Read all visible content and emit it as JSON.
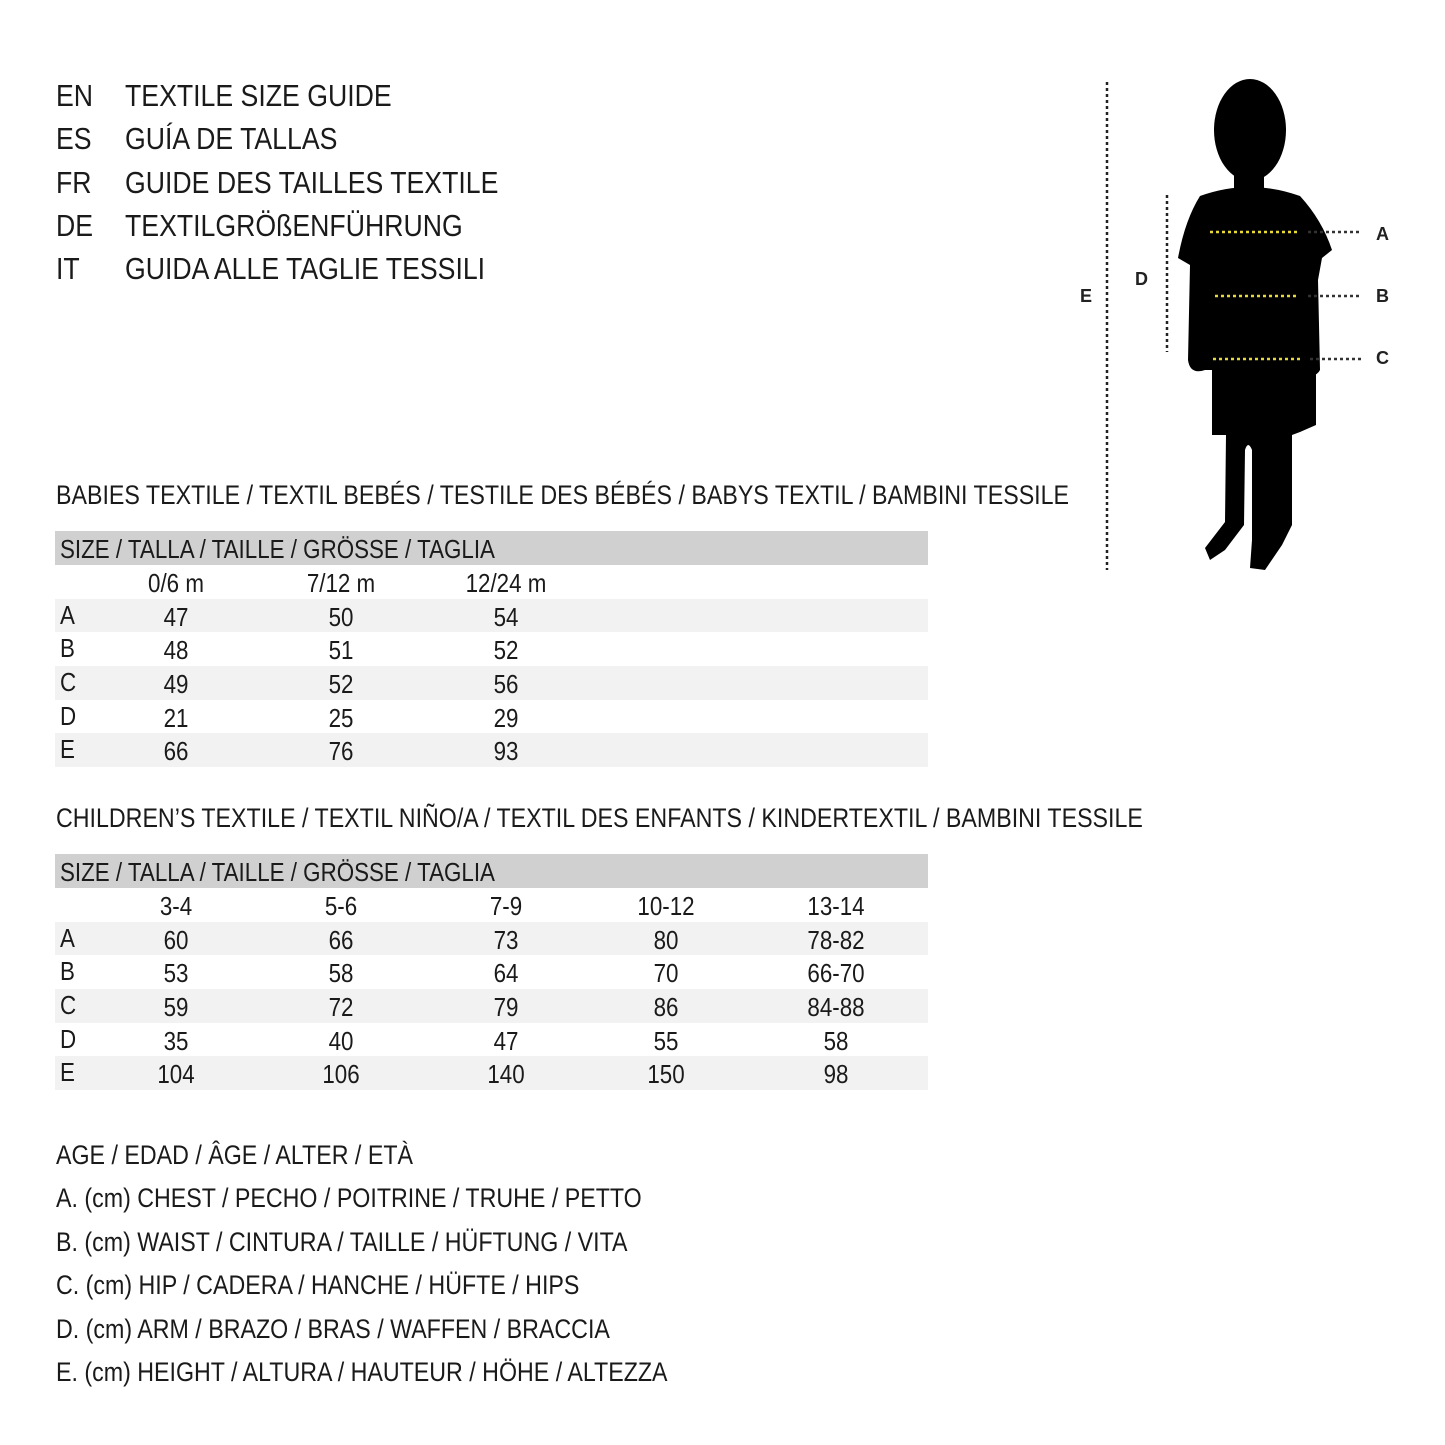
{
  "header": [
    {
      "code": "EN",
      "text": "TEXTILE SIZE GUIDE"
    },
    {
      "code": "ES",
      "text": "GUÍA DE TALLAS"
    },
    {
      "code": "FR",
      "text": "GUIDE DES TAILLES TEXTILE"
    },
    {
      "code": "DE",
      "text": "TEXTILGRÖßENFÜHRUNG"
    },
    {
      "code": "IT",
      "text": "GUIDA ALLE TAGLIE TESSILI"
    }
  ],
  "figure": {
    "labels": {
      "A": "A",
      "B": "B",
      "C": "C",
      "D": "D",
      "E": "E"
    },
    "marker_color": "#e8d93a"
  },
  "babies": {
    "title": "BABIES TEXTILE / TEXTIL BEBÉS / TESTILE DES BÉBÉS / BABYS TEXTIL / BAMBINI TESSILE",
    "size_header": "SIZE / TALLA / TAILLE / GRÖSSE / TAGLIA",
    "columns": [
      "0/6 m",
      "7/12 m",
      "12/24 m"
    ],
    "rows": [
      {
        "label": "A",
        "values": [
          "47",
          "50",
          "54"
        ]
      },
      {
        "label": "B",
        "values": [
          "48",
          "51",
          "52"
        ]
      },
      {
        "label": "C",
        "values": [
          "49",
          "52",
          "56"
        ]
      },
      {
        "label": "D",
        "values": [
          "21",
          "25",
          "29"
        ]
      },
      {
        "label": "E",
        "values": [
          "66",
          "76",
          "93"
        ]
      }
    ]
  },
  "children": {
    "title": "CHILDREN’S TEXTILE / TEXTIL NIÑO/A / TEXTIL DES ENFANTS / KINDERTEXTIL / BAMBINI TESSILE",
    "size_header": "SIZE / TALLA / TAILLE / GRÖSSE / TAGLIA",
    "columns": [
      "3-4",
      "5-6",
      "7-9",
      "10-12",
      "13-14"
    ],
    "rows": [
      {
        "label": "A",
        "values": [
          "60",
          "66",
          "73",
          "80",
          "78-82"
        ]
      },
      {
        "label": "B",
        "values": [
          "53",
          "58",
          "64",
          "70",
          "66-70"
        ]
      },
      {
        "label": "C",
        "values": [
          "59",
          "72",
          "79",
          "86",
          "84-88"
        ]
      },
      {
        "label": "D",
        "values": [
          "35",
          "40",
          "47",
          "55",
          "58"
        ]
      },
      {
        "label": "E",
        "values": [
          "104",
          "106",
          "140",
          "150",
          "98"
        ]
      }
    ]
  },
  "legend": [
    "AGE / EDAD / ÂGE / ALTER / ETÀ",
    "A. (cm) CHEST / PECHO / POITRINE / TRUHE / PETTO",
    "B. (cm) WAIST / CINTURA / TAILLE / HÜFTUNG / VITA",
    "C. (cm) HIP / CADERA / HANCHE / HÜFTE / HIPS",
    "D. (cm) ARM / BRAZO / BRAS / WAFFEN / BRACCIA",
    "E. (cm) HEIGHT / ALTURA / HAUTEUR / HÖHE / ALTEZZA"
  ]
}
